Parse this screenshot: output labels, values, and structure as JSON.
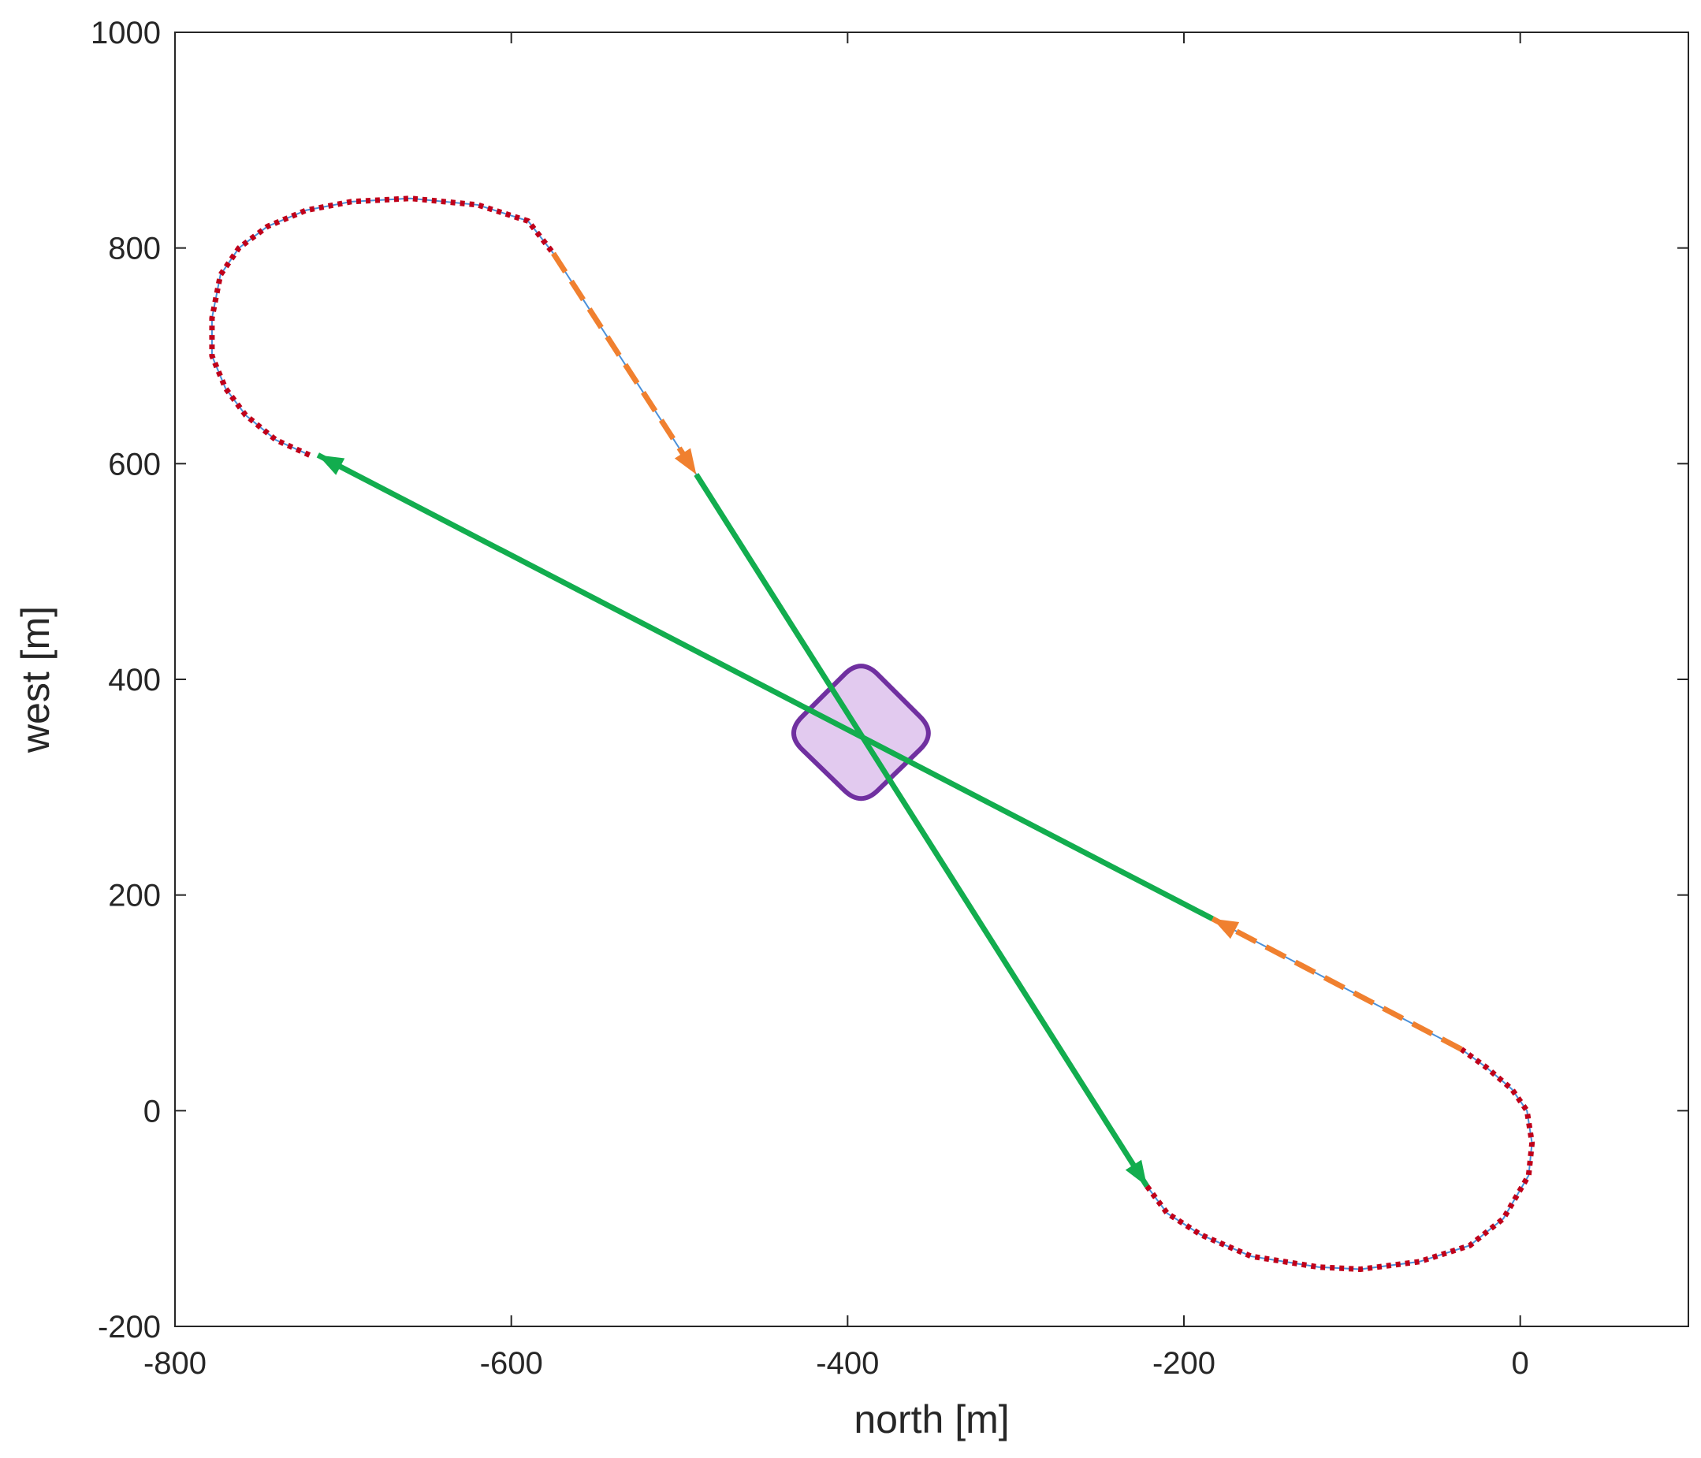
{
  "chart_data": {
    "type": "line",
    "title": "",
    "xlabel": "north [m]",
    "ylabel": "west [m]",
    "xlim": [
      -800,
      100
    ],
    "ylim": [
      -200,
      1000
    ],
    "xticks": [
      -800,
      -600,
      -400,
      -200,
      0
    ],
    "yticks": [
      -200,
      0,
      200,
      400,
      600,
      800,
      1000
    ],
    "grid": false,
    "legend": "none",
    "colors": {
      "loop": "#c0001a",
      "reference": "#4a90d9",
      "transition": "#f0802f",
      "straight": "#12ad4e",
      "region_edge": "#7030a0",
      "region_fill": "#d8b8ea"
    },
    "series": [
      {
        "style": "dotted-loop",
        "x": [
          -720,
          -740,
          -758,
          -770,
          -778,
          -778,
          -773,
          -762,
          -745,
          -722,
          -695,
          -660,
          -620,
          -590,
          -575
        ],
        "y": [
          608,
          622,
          645,
          670,
          700,
          735,
          775,
          800,
          820,
          835,
          843,
          846,
          840,
          825,
          795
        ]
      },
      {
        "style": "dashed-transition",
        "x": [
          -575,
          -490
        ],
        "y": [
          795,
          590
        ],
        "arrow_end": true
      },
      {
        "style": "solid-straight",
        "x": [
          -490,
          -222
        ],
        "y": [
          590,
          -70
        ],
        "arrow_end": true
      },
      {
        "style": "dotted-loop",
        "x": [
          -222,
          -210,
          -190,
          -160,
          -120,
          -95,
          -60,
          -30,
          -10,
          5,
          7,
          4,
          -5,
          -20,
          -35
        ],
        "y": [
          -70,
          -95,
          -115,
          -135,
          -145,
          -147,
          -140,
          -125,
          -100,
          -60,
          -30,
          0,
          20,
          40,
          57
        ]
      },
      {
        "style": "dashed-transition",
        "x": [
          -35,
          -183
        ],
        "y": [
          57,
          178
        ],
        "arrow_end": true
      },
      {
        "style": "solid-straight",
        "x": [
          -183,
          -715
        ],
        "y": [
          178,
          608
        ],
        "arrow_end": true
      }
    ],
    "region": {
      "shape": "rounded-diamond",
      "center": [
        -392,
        350
      ],
      "corners": [
        [
          -392,
          420
        ],
        [
          -347,
          350
        ],
        [
          -392,
          282
        ],
        [
          -437,
          350
        ]
      ]
    }
  }
}
